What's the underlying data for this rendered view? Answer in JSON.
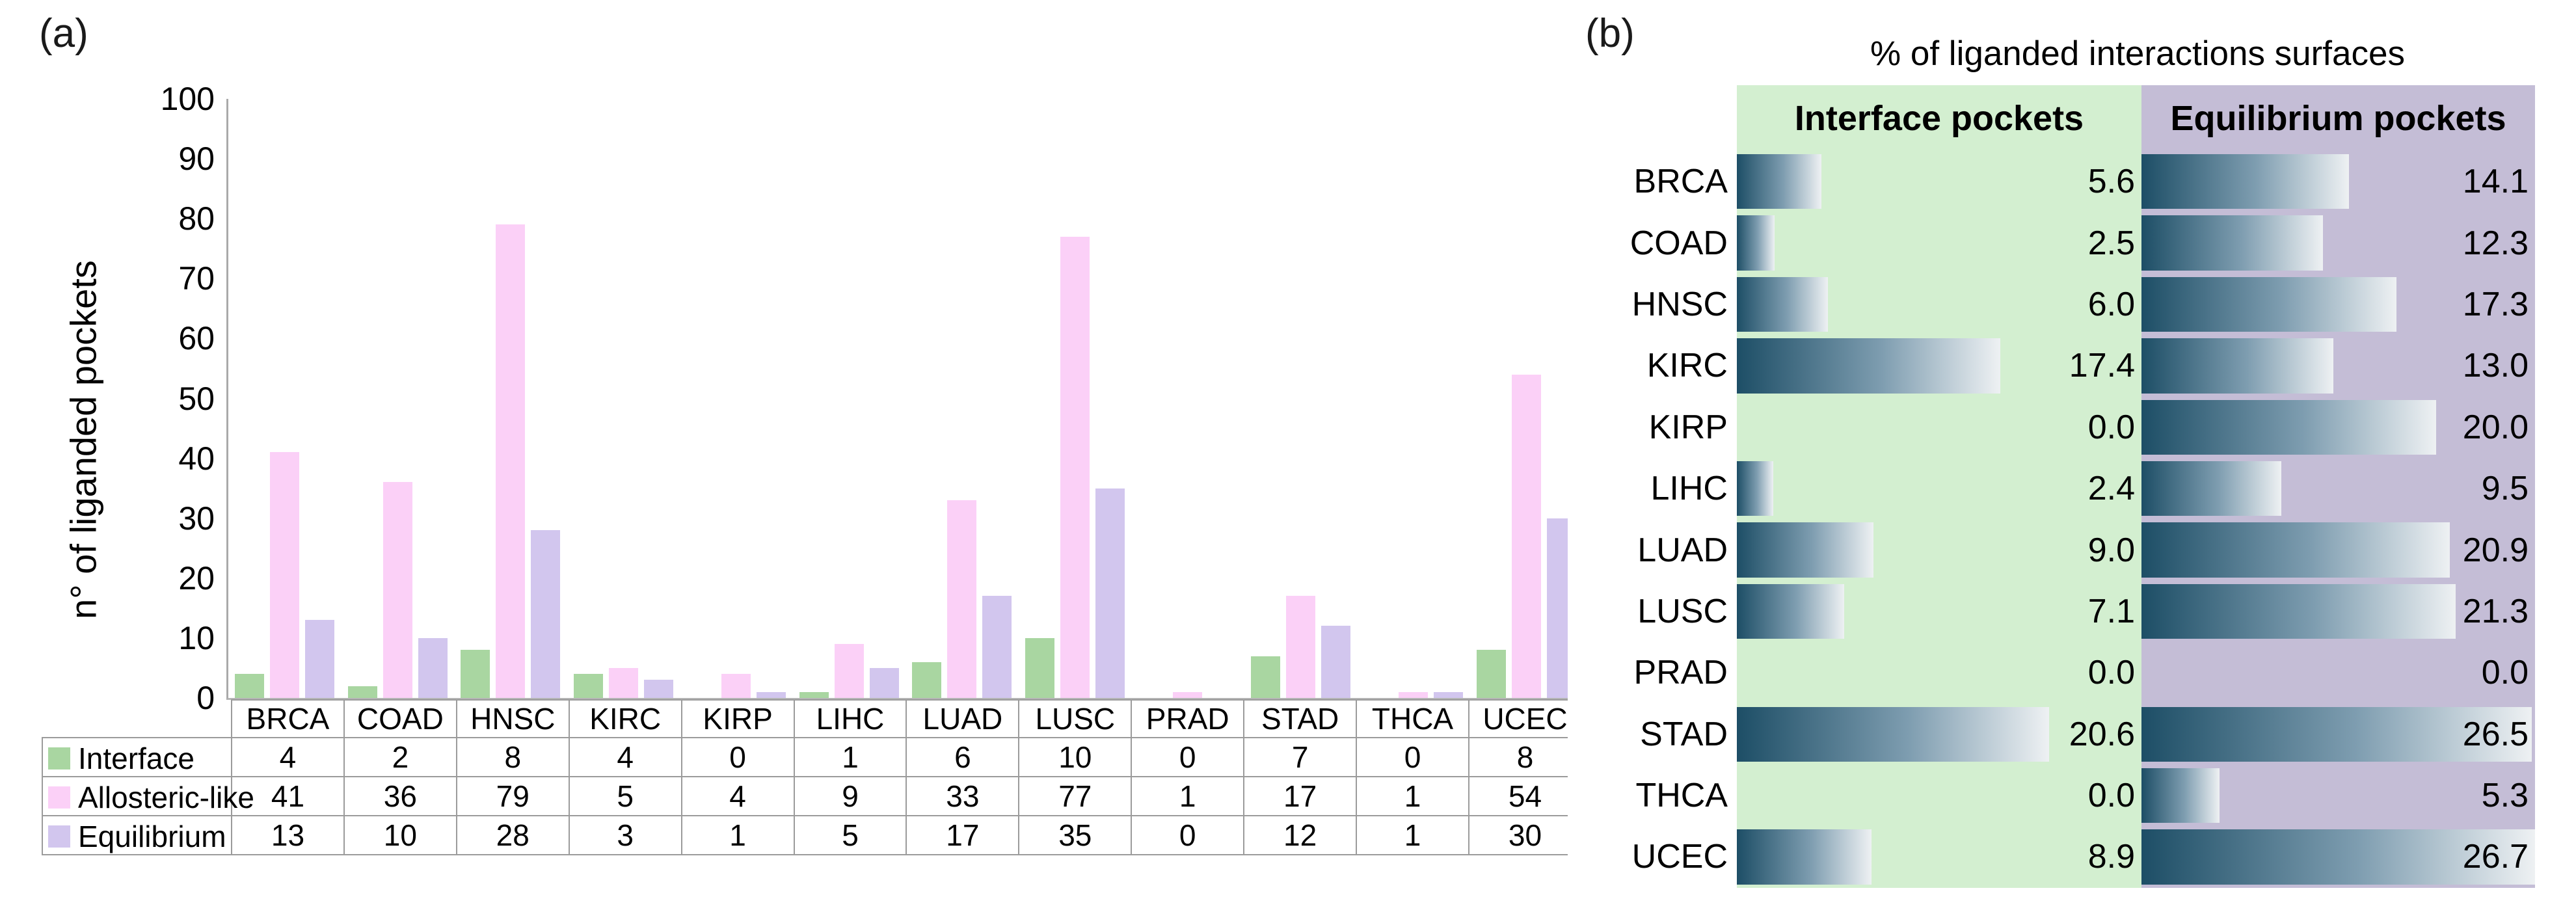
{
  "figure": {
    "panel_a_label": "(a)",
    "panel_b_label": "(b)"
  },
  "chart_data": [
    {
      "id": "liganded-pockets-by-cancer-type",
      "type": "bar",
      "title": "",
      "xlabel": "",
      "ylabel": "n° of liganded pockets",
      "ylim": [
        0,
        100
      ],
      "yticks": [
        0,
        10,
        20,
        30,
        40,
        50,
        60,
        70,
        80,
        90,
        100
      ],
      "grid": false,
      "legend_position": "table-left",
      "categories": [
        "BRCA",
        "COAD",
        "HNSC",
        "KIRC",
        "KIRP",
        "LIHC",
        "LUAD",
        "LUSC",
        "PRAD",
        "STAD",
        "THCA",
        "UCEC"
      ],
      "series": [
        {
          "name": "Interface",
          "color": "#a9d6a1",
          "values": [
            4,
            2,
            8,
            4,
            0,
            1,
            6,
            10,
            0,
            7,
            0,
            8
          ]
        },
        {
          "name": "Allosteric-like",
          "color": "#fbd0f7",
          "values": [
            41,
            36,
            79,
            5,
            4,
            9,
            33,
            77,
            1,
            17,
            1,
            54
          ]
        },
        {
          "name": "Equilibrium",
          "color": "#d2c6ee",
          "values": [
            13,
            10,
            28,
            3,
            1,
            5,
            17,
            35,
            0,
            12,
            1,
            30
          ]
        }
      ]
    },
    {
      "id": "percent-liganded-interaction-surfaces",
      "type": "bar-horizontal-paired",
      "title": "% of liganded interactions surfaces",
      "columns": [
        "Interface pockets",
        "Equilibrium pockets"
      ],
      "column_bg": [
        "#d3efd0",
        "#c4bdd6"
      ],
      "bar_gradient": [
        "#1d4e66",
        "#7e9db0",
        "#eef1f3"
      ],
      "xlim": [
        0,
        26.7
      ],
      "categories": [
        "BRCA",
        "COAD",
        "HNSC",
        "KIRC",
        "KIRP",
        "LIHC",
        "LUAD",
        "LUSC",
        "PRAD",
        "STAD",
        "THCA",
        "UCEC"
      ],
      "series": [
        {
          "name": "Interface pockets",
          "values": [
            5.6,
            2.5,
            6.0,
            17.4,
            0.0,
            2.4,
            9.0,
            7.1,
            0.0,
            20.6,
            0.0,
            8.9
          ]
        },
        {
          "name": "Equilibrium pockets",
          "values": [
            14.1,
            12.3,
            17.3,
            13.0,
            20.0,
            9.5,
            20.9,
            21.3,
            0.0,
            26.5,
            5.3,
            26.7
          ]
        }
      ]
    }
  ]
}
